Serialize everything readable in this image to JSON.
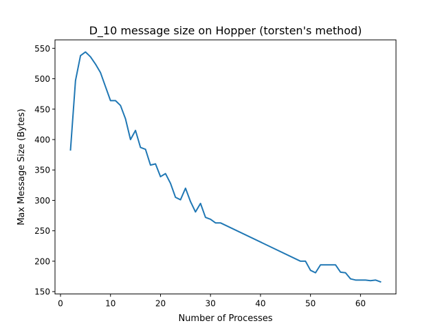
{
  "chart_data": {
    "type": "line",
    "title": "D_10 message size on Hopper (torsten's method)",
    "xlabel": "Number of Processes",
    "ylabel": "Max Message Size (Bytes)",
    "xlim": [
      -1.1,
      67.1
    ],
    "ylim": [
      146.1,
      563.9
    ],
    "xticks": [
      0,
      10,
      20,
      30,
      40,
      50,
      60
    ],
    "yticks": [
      150,
      200,
      250,
      300,
      350,
      400,
      450,
      500,
      550
    ],
    "grid": false,
    "legend": "none",
    "series": [
      {
        "color": "#1f77b4",
        "x": [
          2,
          3,
          4,
          5,
          6,
          7,
          8,
          9,
          10,
          11,
          12,
          13,
          14,
          15,
          16,
          17,
          18,
          19,
          20,
          21,
          22,
          23,
          24,
          25,
          26,
          27,
          28,
          29,
          30,
          31,
          32,
          48,
          49,
          50,
          51,
          52,
          53,
          54,
          55,
          56,
          57,
          58,
          59,
          60,
          61,
          62,
          63,
          64
        ],
        "y": [
          383,
          497,
          538,
          544,
          536,
          524,
          510,
          487,
          464,
          464,
          456,
          434,
          400,
          415,
          387,
          384,
          358,
          360,
          339,
          344,
          328,
          305,
          301,
          320,
          298,
          281,
          295,
          272,
          269,
          263,
          263,
          200,
          200,
          185,
          181,
          194,
          194,
          194,
          194,
          182,
          181,
          171,
          169,
          169,
          169,
          168,
          169,
          166
        ]
      }
    ]
  }
}
